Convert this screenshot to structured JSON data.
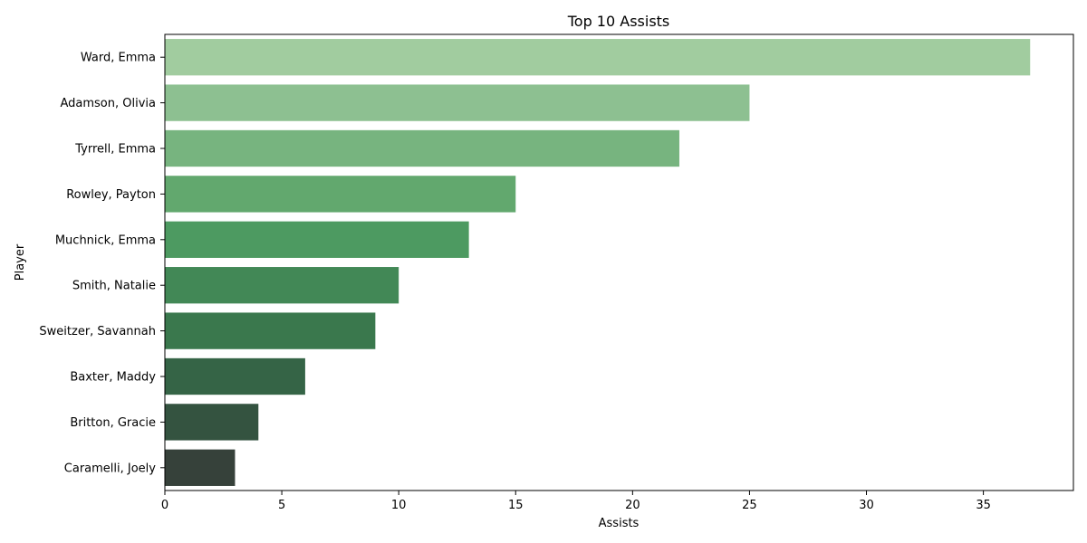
{
  "chart_data": {
    "type": "bar",
    "orientation": "horizontal",
    "title": "Top 10 Assists",
    "xlabel": "Assists",
    "ylabel": "Player",
    "categories": [
      "Ward, Emma",
      "Adamson, Olivia",
      "Tyrrell, Emma",
      "Rowley, Payton",
      "Muchnick, Emma",
      "Smith, Natalie",
      "Sweitzer, Savannah",
      "Baxter, Maddy",
      "Britton, Gracie",
      "Caramelli, Joely"
    ],
    "values": [
      37,
      25,
      22,
      15,
      13,
      10,
      9,
      6,
      4,
      3
    ],
    "colors": [
      "#a1cc9f",
      "#8dc091",
      "#77b47f",
      "#62a86e",
      "#4d9a61",
      "#428856",
      "#3a784d",
      "#356446",
      "#345340",
      "#36413a"
    ],
    "xlim": [
      0,
      38.85
    ],
    "xticks": [
      0,
      5,
      10,
      15,
      20,
      25,
      30,
      35
    ],
    "grid": false
  }
}
